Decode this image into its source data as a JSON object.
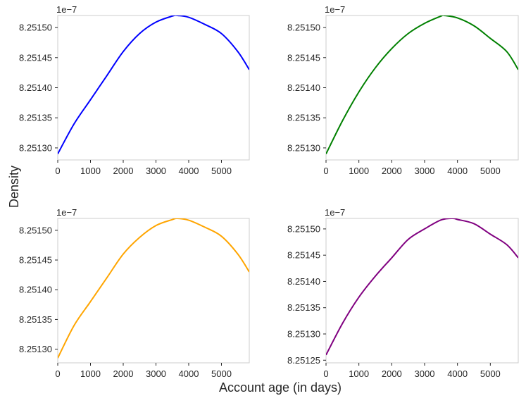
{
  "figure": {
    "xlabel": "Account age (in days)",
    "ylabel": "Density"
  },
  "chart_data": [
    {
      "type": "line",
      "xlim": [
        0,
        5850
      ],
      "ylim": [
        8.25128e-07,
        8.25152e-07
      ],
      "y_offset_label": "1e−7",
      "xticks": [
        0,
        1000,
        2000,
        3000,
        4000,
        5000
      ],
      "yticks": [
        8.2513,
        8.25135,
        8.2514,
        8.25145,
        8.2515
      ],
      "ytick_labels": [
        "8.25130",
        "8.25135",
        "8.25140",
        "8.25145",
        "8.25150"
      ],
      "grid": false,
      "series": [
        {
          "color": "#0000ff",
          "x": [
            0,
            500,
            1000,
            1500,
            2000,
            2500,
            3000,
            3500,
            3650,
            4000,
            4500,
            5000,
            5500,
            5850
          ],
          "y": [
            8.25129e-07,
            8.25134e-07,
            8.25138e-07,
            8.25142e-07,
            8.25146e-07,
            8.25149e-07,
            8.251509e-07,
            8.251519e-07,
            8.25152e-07,
            8.251517e-07,
            8.251505e-07,
            8.25149e-07,
            8.25146e-07,
            8.25143e-07
          ]
        }
      ]
    },
    {
      "type": "line",
      "xlim": [
        0,
        5850
      ],
      "ylim": [
        8.25128e-07,
        8.25152e-07
      ],
      "y_offset_label": "1e−7",
      "xticks": [
        0,
        1000,
        2000,
        3000,
        4000,
        5000
      ],
      "yticks": [
        8.2513,
        8.25135,
        8.2514,
        8.25145,
        8.2515
      ],
      "ytick_labels": [
        "8.25130",
        "8.25135",
        "8.25140",
        "8.25145",
        "8.25150"
      ],
      "grid": false,
      "series": [
        {
          "color": "#008000",
          "x": [
            0,
            500,
            1000,
            1500,
            2000,
            2500,
            3000,
            3500,
            3600,
            4000,
            4500,
            5000,
            5500,
            5850
          ],
          "y": [
            8.25129e-07,
            8.251345e-07,
            8.251393e-07,
            8.251433e-07,
            8.251465e-07,
            8.25149e-07,
            8.251507e-07,
            8.251519e-07,
            8.25152e-07,
            8.251516e-07,
            8.251503e-07,
            8.251482e-07,
            8.25146e-07,
            8.25143e-07
          ]
        }
      ]
    },
    {
      "type": "line",
      "xlim": [
        0,
        5850
      ],
      "ylim": [
        8.251277e-07,
        8.25152e-07
      ],
      "y_offset_label": "1e−7",
      "xticks": [
        0,
        1000,
        2000,
        3000,
        4000,
        5000
      ],
      "yticks": [
        8.2513,
        8.25135,
        8.2514,
        8.25145,
        8.2515
      ],
      "ytick_labels": [
        "8.25130",
        "8.25135",
        "8.25140",
        "8.25145",
        "8.25150"
      ],
      "grid": false,
      "series": [
        {
          "color": "#ffa500",
          "x": [
            0,
            500,
            1000,
            1500,
            2000,
            2500,
            3000,
            3500,
            3650,
            4000,
            4500,
            5000,
            5500,
            5850
          ],
          "y": [
            8.251285e-07,
            8.25134e-07,
            8.25138e-07,
            8.25142e-07,
            8.25146e-07,
            8.251488e-07,
            8.251508e-07,
            8.251518e-07,
            8.25152e-07,
            8.251517e-07,
            8.251505e-07,
            8.25149e-07,
            8.25146e-07,
            8.25143e-07
          ]
        }
      ]
    },
    {
      "type": "line",
      "xlim": [
        0,
        5850
      ],
      "ylim": [
        8.251245e-07,
        8.25152e-07
      ],
      "y_offset_label": "1e−7",
      "xticks": [
        0,
        1000,
        2000,
        3000,
        4000,
        5000
      ],
      "yticks": [
        8.25125,
        8.2513,
        8.25135,
        8.2514,
        8.25145,
        8.2515
      ],
      "ytick_labels": [
        "8.25125",
        "8.25130",
        "8.25135",
        "8.25140",
        "8.25145",
        "8.25150"
      ],
      "grid": false,
      "series": [
        {
          "color": "#800080",
          "x": [
            0,
            500,
            1000,
            1500,
            2000,
            2500,
            3000,
            3500,
            3850,
            4000,
            4500,
            5000,
            5500,
            5850
          ],
          "y": [
            8.25126e-07,
            8.25132e-07,
            8.25137e-07,
            8.25141e-07,
            8.251445e-07,
            8.25148e-07,
            8.2515e-07,
            8.251517e-07,
            8.25152e-07,
            8.251518e-07,
            8.25151e-07,
            8.25149e-07,
            8.25147e-07,
            8.251445e-07
          ]
        }
      ]
    }
  ]
}
